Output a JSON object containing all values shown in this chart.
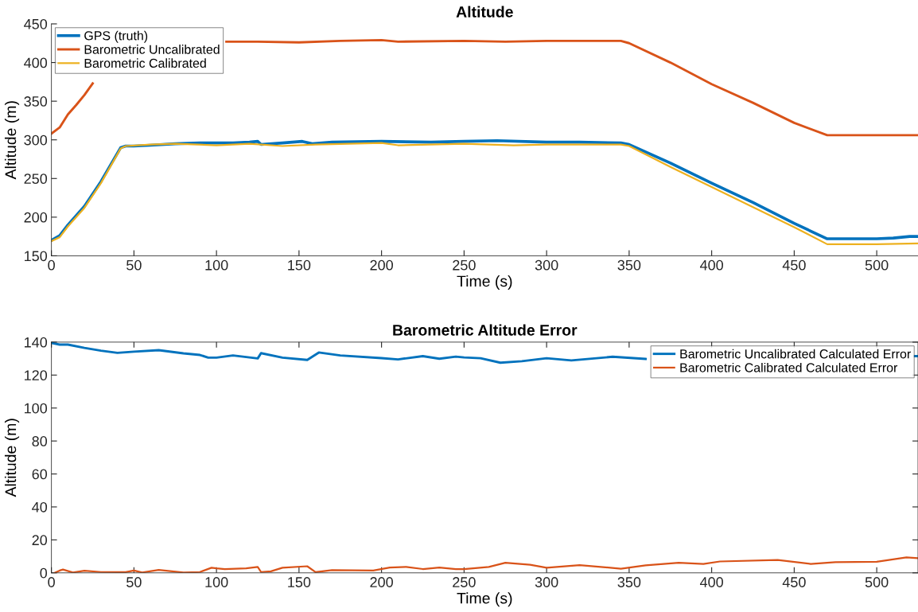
{
  "chart_data": [
    {
      "type": "line",
      "title": "Altitude",
      "xlabel": "Time (s)",
      "ylabel": "Altitude (m)",
      "xlim": [
        0,
        525
      ],
      "xticks": [
        0,
        50,
        100,
        150,
        200,
        250,
        300,
        350,
        400,
        450,
        500
      ],
      "ylim": [
        150,
        450
      ],
      "yticks": [
        150,
        200,
        250,
        300,
        350,
        400,
        450
      ],
      "grid": false,
      "legend": "top left",
      "series": [
        {
          "name": "GPS (truth)",
          "color": "#0072bd",
          "x": [
            0,
            5,
            10,
            20,
            30,
            42,
            45,
            50,
            60,
            75,
            90,
            100,
            110,
            120,
            125,
            127,
            140,
            152,
            158,
            170,
            200,
            230,
            250,
            270,
            300,
            320,
            345,
            350,
            375,
            400,
            425,
            450,
            470,
            490,
            500,
            510,
            520,
            525
          ],
          "values": [
            170,
            176,
            190,
            214,
            246,
            290,
            292,
            292,
            293,
            295,
            296,
            296,
            296,
            297,
            298,
            294,
            296,
            298,
            295,
            297,
            298,
            297,
            298,
            299,
            297,
            297,
            296,
            294,
            270,
            244,
            219,
            192,
            172,
            172,
            172,
            173,
            175,
            175
          ]
        },
        {
          "name": "Barometric Uncalibrated",
          "color": "#d95319",
          "x": [
            0,
            5,
            10,
            15,
            20,
            25,
            27,
            100,
            106,
            125,
            150,
            175,
            200,
            210,
            250,
            275,
            300,
            325,
            345,
            350,
            375,
            400,
            425,
            450,
            470,
            500,
            525
          ],
          "values": [
            308,
            316,
            333,
            345,
            358,
            373,
            null,
            null,
            427,
            427,
            426,
            428,
            429,
            427,
            428,
            427,
            428,
            428,
            428,
            425,
            400,
            372,
            348,
            322,
            306,
            306,
            306
          ]
        },
        {
          "name": "Barometric Calibrated",
          "color": "#edb120",
          "x": [
            0,
            5,
            10,
            20,
            30,
            42,
            45,
            60,
            75,
            100,
            120,
            140,
            160,
            200,
            210,
            250,
            280,
            300,
            345,
            350,
            375,
            400,
            425,
            450,
            470,
            500,
            525
          ],
          "values": [
            169,
            174,
            188,
            212,
            244,
            289,
            292,
            294,
            295,
            293,
            295,
            292,
            294,
            296,
            293,
            295,
            293,
            294,
            294,
            292,
            265,
            239,
            213,
            187,
            165,
            165,
            166
          ]
        }
      ]
    },
    {
      "type": "line",
      "title": "Barometric Altitude Error",
      "xlabel": "Time (s)",
      "ylabel": "Altitude (m)",
      "xlim": [
        0,
        525
      ],
      "xticks": [
        0,
        50,
        100,
        150,
        200,
        250,
        300,
        350,
        400,
        450,
        500
      ],
      "ylim": [
        0,
        140
      ],
      "yticks": [
        0,
        20,
        40,
        60,
        80,
        100,
        120,
        140
      ],
      "grid": false,
      "legend": "top right",
      "series": [
        {
          "name": "Barometric Uncalibrated Calculated Error",
          "color": "#0072bd",
          "x": [
            0,
            5,
            10,
            20,
            30,
            40,
            50,
            65,
            80,
            90,
            95,
            100,
            110,
            125,
            127,
            140,
            155,
            162,
            175,
            200,
            210,
            225,
            235,
            245,
            250,
            260,
            272,
            285,
            300,
            315,
            340,
            360,
            370,
            372,
            523,
            525
          ],
          "values": [
            139.5,
            138.5,
            138.5,
            136.5,
            134.8,
            133.5,
            134.2,
            135.1,
            133.2,
            132.2,
            130.6,
            130.6,
            131.9,
            130.1,
            133.3,
            130.6,
            129.2,
            133.7,
            131.9,
            130.3,
            129.5,
            131.5,
            129.9,
            131.2,
            130.7,
            130.2,
            127.5,
            128.4,
            130.2,
            128.9,
            131.1,
            129.8,
            null,
            null,
            131.5,
            131.5
          ]
        },
        {
          "name": "Barometric Calibrated Calculated Error",
          "color": "#d95319",
          "x": [
            2,
            5,
            7,
            13,
            20,
            30,
            45,
            50,
            55,
            65,
            80,
            90,
            97,
            100,
            105,
            118,
            125,
            127,
            133,
            140,
            155,
            160,
            170,
            195,
            205,
            215,
            225,
            235,
            245,
            250,
            265,
            275,
            290,
            300,
            320,
            345,
            360,
            380,
            395,
            405,
            440,
            460,
            475,
            500,
            518,
            525
          ],
          "values": [
            0,
            1.4,
            2,
            0.2,
            1.3,
            0.5,
            0.4,
            1.4,
            0.2,
            1.8,
            0.2,
            0.5,
            3.1,
            2.7,
            2.2,
            2.7,
            3.6,
            0.5,
            0.9,
            3.1,
            4.0,
            0.4,
            1.6,
            1.4,
            3.2,
            3.6,
            2.3,
            3.2,
            2.3,
            2.2,
            3.6,
            6.1,
            4.9,
            3.1,
            4.7,
            2.5,
            4.5,
            6.1,
            5.4,
            6.9,
            7.8,
            5.4,
            6.5,
            6.7,
            9.4,
            8.9
          ]
        }
      ]
    }
  ]
}
